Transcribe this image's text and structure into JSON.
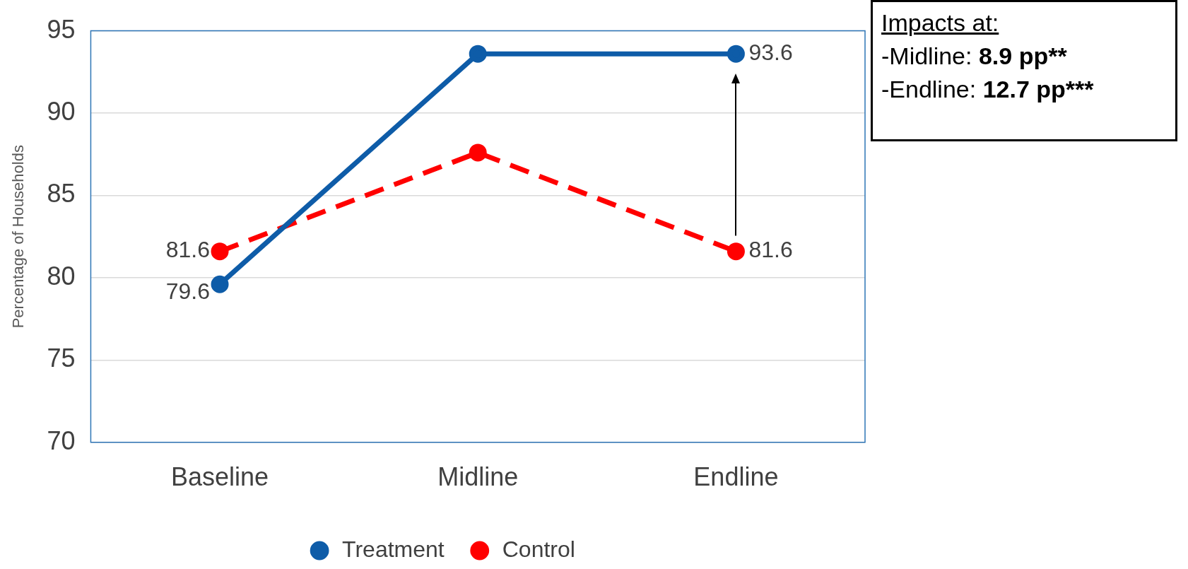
{
  "chart_data": {
    "type": "line",
    "ylabel": "Percentage of Households",
    "categories": [
      "Baseline",
      "Midline",
      "Endline"
    ],
    "series": [
      {
        "name": "Treatment",
        "color": "#0e5ca8",
        "values": [
          79.6,
          93.6,
          93.6
        ],
        "value_labels": [
          "79.6",
          null,
          "93.6"
        ],
        "line_style": "solid"
      },
      {
        "name": "Control",
        "color": "#ff0000",
        "values": [
          81.6,
          87.6,
          81.6
        ],
        "value_labels": [
          "81.6",
          null,
          "81.6"
        ],
        "line_style": "dashed"
      }
    ],
    "ylim": [
      70,
      95
    ],
    "yticks": [
      70,
      75,
      80,
      85,
      90,
      95
    ],
    "grid": "y",
    "legend": "bottom",
    "marker": "circle",
    "annotations": [
      "Impacts at:",
      "-Midline: 8.9 pp**",
      "-Endline: 12.7 pp***"
    ]
  }
}
